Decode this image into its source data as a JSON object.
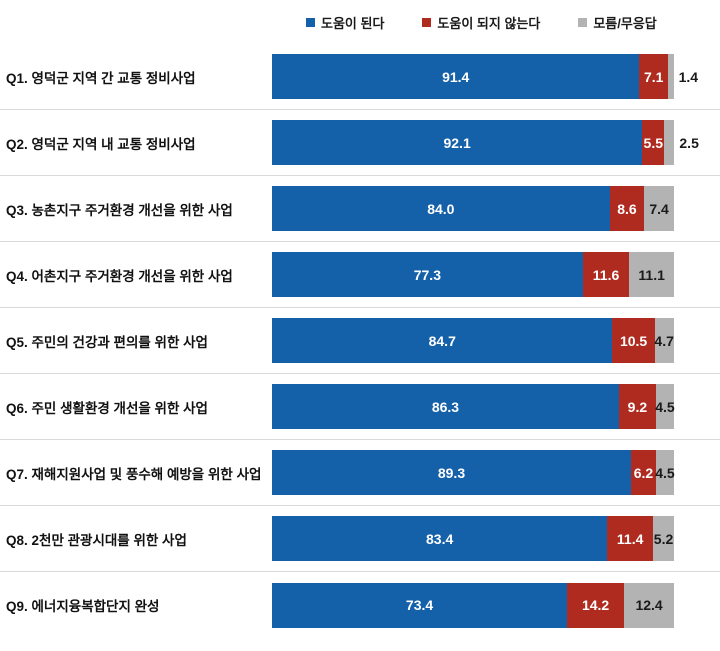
{
  "colors": {
    "helpful_blue": "#1561A9",
    "not_helpful_red": "#B02B1F",
    "dont_know_gray": "#B3B3B3",
    "divider": "#d9d9d9",
    "background": "#ffffff"
  },
  "chart_data": {
    "type": "bar",
    "orientation": "horizontal-stacked",
    "title": "",
    "xlabel": "",
    "ylabel": "",
    "xlim": [
      0,
      100
    ],
    "grid": false,
    "legend_position": "top",
    "categories": [
      "Q1. 영덕군 지역 간 교통 정비사업",
      "Q2. 영덕군 지역 내 교통 정비사업",
      "Q3. 농촌지구 주거환경 개선을 위한 사업",
      "Q4. 어촌지구 주거환경 개선을 위한 사업",
      "Q5. 주민의 건강과 편의를 위한 사업",
      "Q6. 주민 생활환경 개선을 위한 사업",
      "Q7. 재해지원사업 및 풍수해 예방을 위한 사업",
      "Q8. 2천만 관광시대를 위한 사업",
      "Q9. 에너지융복합단지 완성"
    ],
    "series": [
      {
        "name": "도움이 된다",
        "color": "#1561A9",
        "values": [
          91.4,
          92.1,
          84.0,
          77.3,
          84.7,
          86.3,
          89.3,
          83.4,
          73.4
        ],
        "labels": [
          "91.4",
          "92.1",
          "84.0",
          "77.3",
          "84.7",
          "86.3",
          "89.3",
          "83.4",
          "73.4"
        ]
      },
      {
        "name": "도움이 되지 않는다",
        "color": "#B02B1F",
        "values": [
          7.1,
          5.5,
          8.6,
          11.6,
          10.5,
          9.2,
          6.2,
          11.4,
          14.2
        ],
        "labels": [
          "7.1",
          "5.5",
          "8.6",
          "11.6",
          "10.5",
          "9.2",
          "6.2",
          "11.4",
          "14.2"
        ]
      },
      {
        "name": "모름/무응답",
        "color": "#B3B3B3",
        "values": [
          1.4,
          2.5,
          7.4,
          11.1,
          4.7,
          4.5,
          4.5,
          5.2,
          12.4
        ],
        "labels": [
          "1.4",
          "2.5",
          "7.4",
          "11.1",
          "4.7",
          "4.5",
          "4.5",
          "5.2",
          "12.4"
        ]
      }
    ]
  }
}
